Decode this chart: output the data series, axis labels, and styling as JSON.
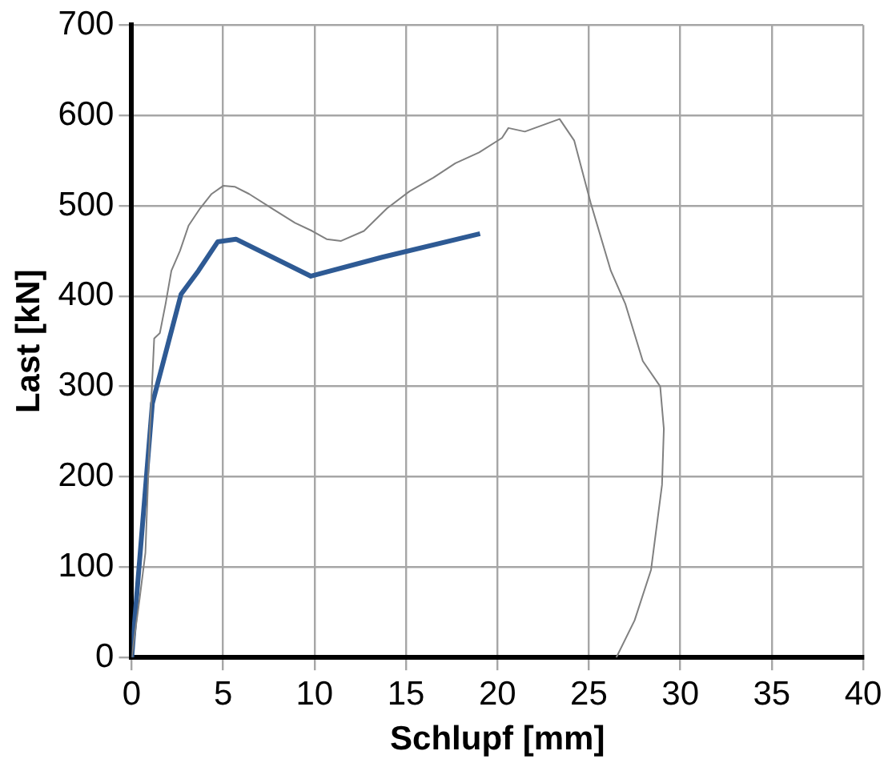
{
  "chart_data": {
    "type": "line",
    "xlabel": "Schlupf [mm]",
    "ylabel": "Last [kN]",
    "xlim": [
      0,
      40
    ],
    "xticks": [
      0,
      5,
      10,
      15,
      20,
      25,
      30,
      35,
      40
    ],
    "ylim": [
      0,
      700
    ],
    "yticks": [
      0,
      100,
      200,
      300,
      400,
      500,
      600,
      700
    ],
    "grid": true,
    "legend": false,
    "marker": "none",
    "line_style": "solid",
    "series": [
      {
        "color": "#808080",
        "x": [
          0,
          0.44,
          0.75,
          1.0,
          1.23,
          1.54,
          1.85,
          2.17,
          2.64,
          3.11,
          3.74,
          4.37,
          5.0,
          5.63,
          6.42,
          7.67,
          8.93,
          9.87,
          10.66,
          11.45,
          12.7,
          13.96,
          15.2,
          16.5,
          17.7,
          19.0,
          20.25,
          20.6,
          21.5,
          23.4,
          24.2,
          25.1,
          26.2,
          27.0,
          27.95,
          28.9,
          29.1,
          29.0,
          28.4,
          27.5,
          26.5
        ],
        "values": [
          0,
          66,
          116,
          253,
          353,
          359,
          391,
          428,
          450,
          478,
          497,
          513,
          522,
          521,
          513,
          497,
          481,
          472,
          463,
          461,
          472,
          497,
          516,
          531,
          547,
          559,
          575,
          586,
          582,
          596,
          572,
          503,
          428,
          391,
          328,
          300,
          253,
          191,
          97,
          41,
          0
        ]
      },
      {
        "color": "#2e5a94",
        "x": [
          0,
          1.13,
          2.7,
          3.65,
          4.7,
          5.7,
          9.8,
          13.7,
          19.05
        ],
        "values": [
          0,
          281,
          402,
          428,
          460,
          463,
          422,
          443,
          469
        ]
      }
    ]
  }
}
